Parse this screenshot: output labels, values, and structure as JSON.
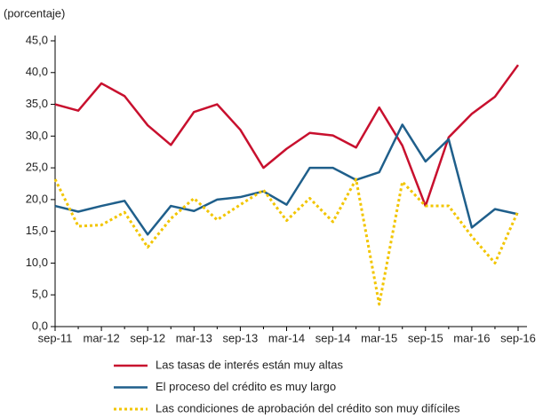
{
  "chart_data": {
    "type": "line",
    "y_label": "(porcentaje)",
    "categories": [
      "sep-11",
      null,
      "mar-12",
      null,
      "sep-12",
      null,
      "mar-13",
      null,
      "sep-13",
      null,
      "mar-14",
      null,
      "sep-14",
      null,
      "mar-15",
      null,
      "sep-15",
      null,
      "mar-16",
      null,
      "sep-16"
    ],
    "series": [
      {
        "name": "Las tasas de interés están muy altas",
        "color": "#c8102e",
        "dash": false,
        "values": [
          35,
          34,
          38.3,
          36.3,
          31.7,
          28.6,
          33.8,
          35,
          31,
          25,
          28,
          30.5,
          30.1,
          28.2,
          34.5,
          28.5,
          19,
          29.8,
          33.5,
          36.2,
          41.2
        ]
      },
      {
        "name": "El proceso del crédito es muy largo",
        "color": "#1f5f8b",
        "dash": false,
        "values": [
          19,
          18.1,
          19,
          19.8,
          14.5,
          19,
          18.2,
          20,
          20.4,
          21.3,
          19.2,
          25,
          25,
          23.1,
          24.3,
          31.8,
          26,
          29.5,
          15.6,
          18.5,
          17.7
        ]
      },
      {
        "name": "Las condiciones de aprobación del crédito son muy difíciles",
        "color": "#f2c500",
        "dash": true,
        "values": [
          23.2,
          15.8,
          16,
          18,
          12.5,
          17,
          20.2,
          16.8,
          19.2,
          21.5,
          16.7,
          20.2,
          16.5,
          23.2,
          3.5,
          22.8,
          19,
          19,
          14.2,
          10,
          18.2
        ]
      }
    ],
    "ylim": [
      0,
      45
    ],
    "yticks": [
      {
        "value": 0,
        "label": "0,0"
      },
      {
        "value": 5,
        "label": "5,0"
      },
      {
        "value": 10,
        "label": "10,0"
      },
      {
        "value": 15,
        "label": "15,0"
      },
      {
        "value": 20,
        "label": "20,0"
      },
      {
        "value": 25,
        "label": "25,0"
      },
      {
        "value": 30,
        "label": "30,0"
      },
      {
        "value": 35,
        "label": "35,0"
      },
      {
        "value": 40,
        "label": "40,0"
      },
      {
        "value": 45,
        "label": "45,0"
      }
    ],
    "grid": false
  }
}
